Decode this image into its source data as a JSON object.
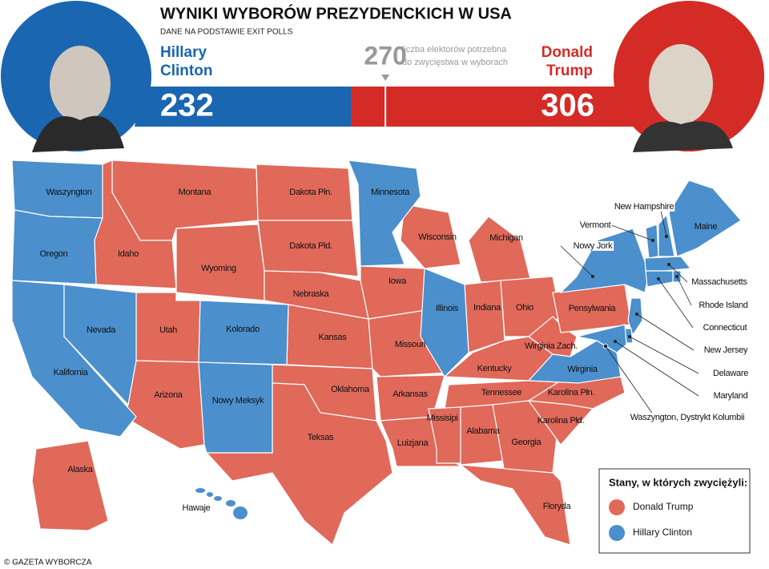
{
  "header": {
    "title": "WYNIKI WYBORÓW PREZYDENCKICH W USA",
    "subtitle": "DANE NA PODSTAWIE EXIT POLLS"
  },
  "clinton": {
    "name_lines": [
      "Hillary",
      "Clinton"
    ],
    "votes": 232
  },
  "trump": {
    "name_lines": [
      "Donald",
      "Trump"
    ],
    "votes": 306
  },
  "threshold": {
    "value": 270,
    "label_lines": [
      "liczba elektorów potrzebna",
      "do zwycięstwa w wyborach"
    ]
  },
  "legend": {
    "title": "Stany, w których zwyciężyli:",
    "items": [
      {
        "label": "Donald Trump",
        "color": "#e0695a",
        "states": [
          "Montana",
          "Dakota Płn.",
          "Dakota Płd.",
          "Idaho",
          "Wyoming",
          "Nebraska",
          "Kansas",
          "Oklahoma",
          "Teksas",
          "Utah",
          "Arizona",
          "Iowa",
          "Missouri",
          "Arkansas",
          "Luizjana",
          "Wisconsin",
          "Michigan",
          "Indiana",
          "Ohio",
          "Kentucky",
          "Tennessee",
          "Missisipi",
          "Alabama",
          "Georgia",
          "Floryda",
          "Karolina Płn.",
          "Karolina Płd.",
          "Wirginia Zach.",
          "Pensylwania",
          "Alaska"
        ]
      },
      {
        "label": "Hillary Clinton",
        "color": "#4b8fcc",
        "states": [
          "Waszyngton",
          "Oregon",
          "Kalifornia",
          "Nevada",
          "Kolorado",
          "Nowy Meksyk",
          "Minnesota",
          "Illinois",
          "Wirginia",
          "Nowy Jork",
          "Vermont",
          "New Hampshire",
          "Maine",
          "Massachusetts",
          "Rhode Island",
          "Connecticut",
          "New Jersey",
          "Delaware",
          "Maryland",
          "Waszyngton, Dystrykt Kolumbii",
          "Hawaje"
        ]
      }
    ]
  },
  "credit": "© GAZETA WYBORCZA"
}
